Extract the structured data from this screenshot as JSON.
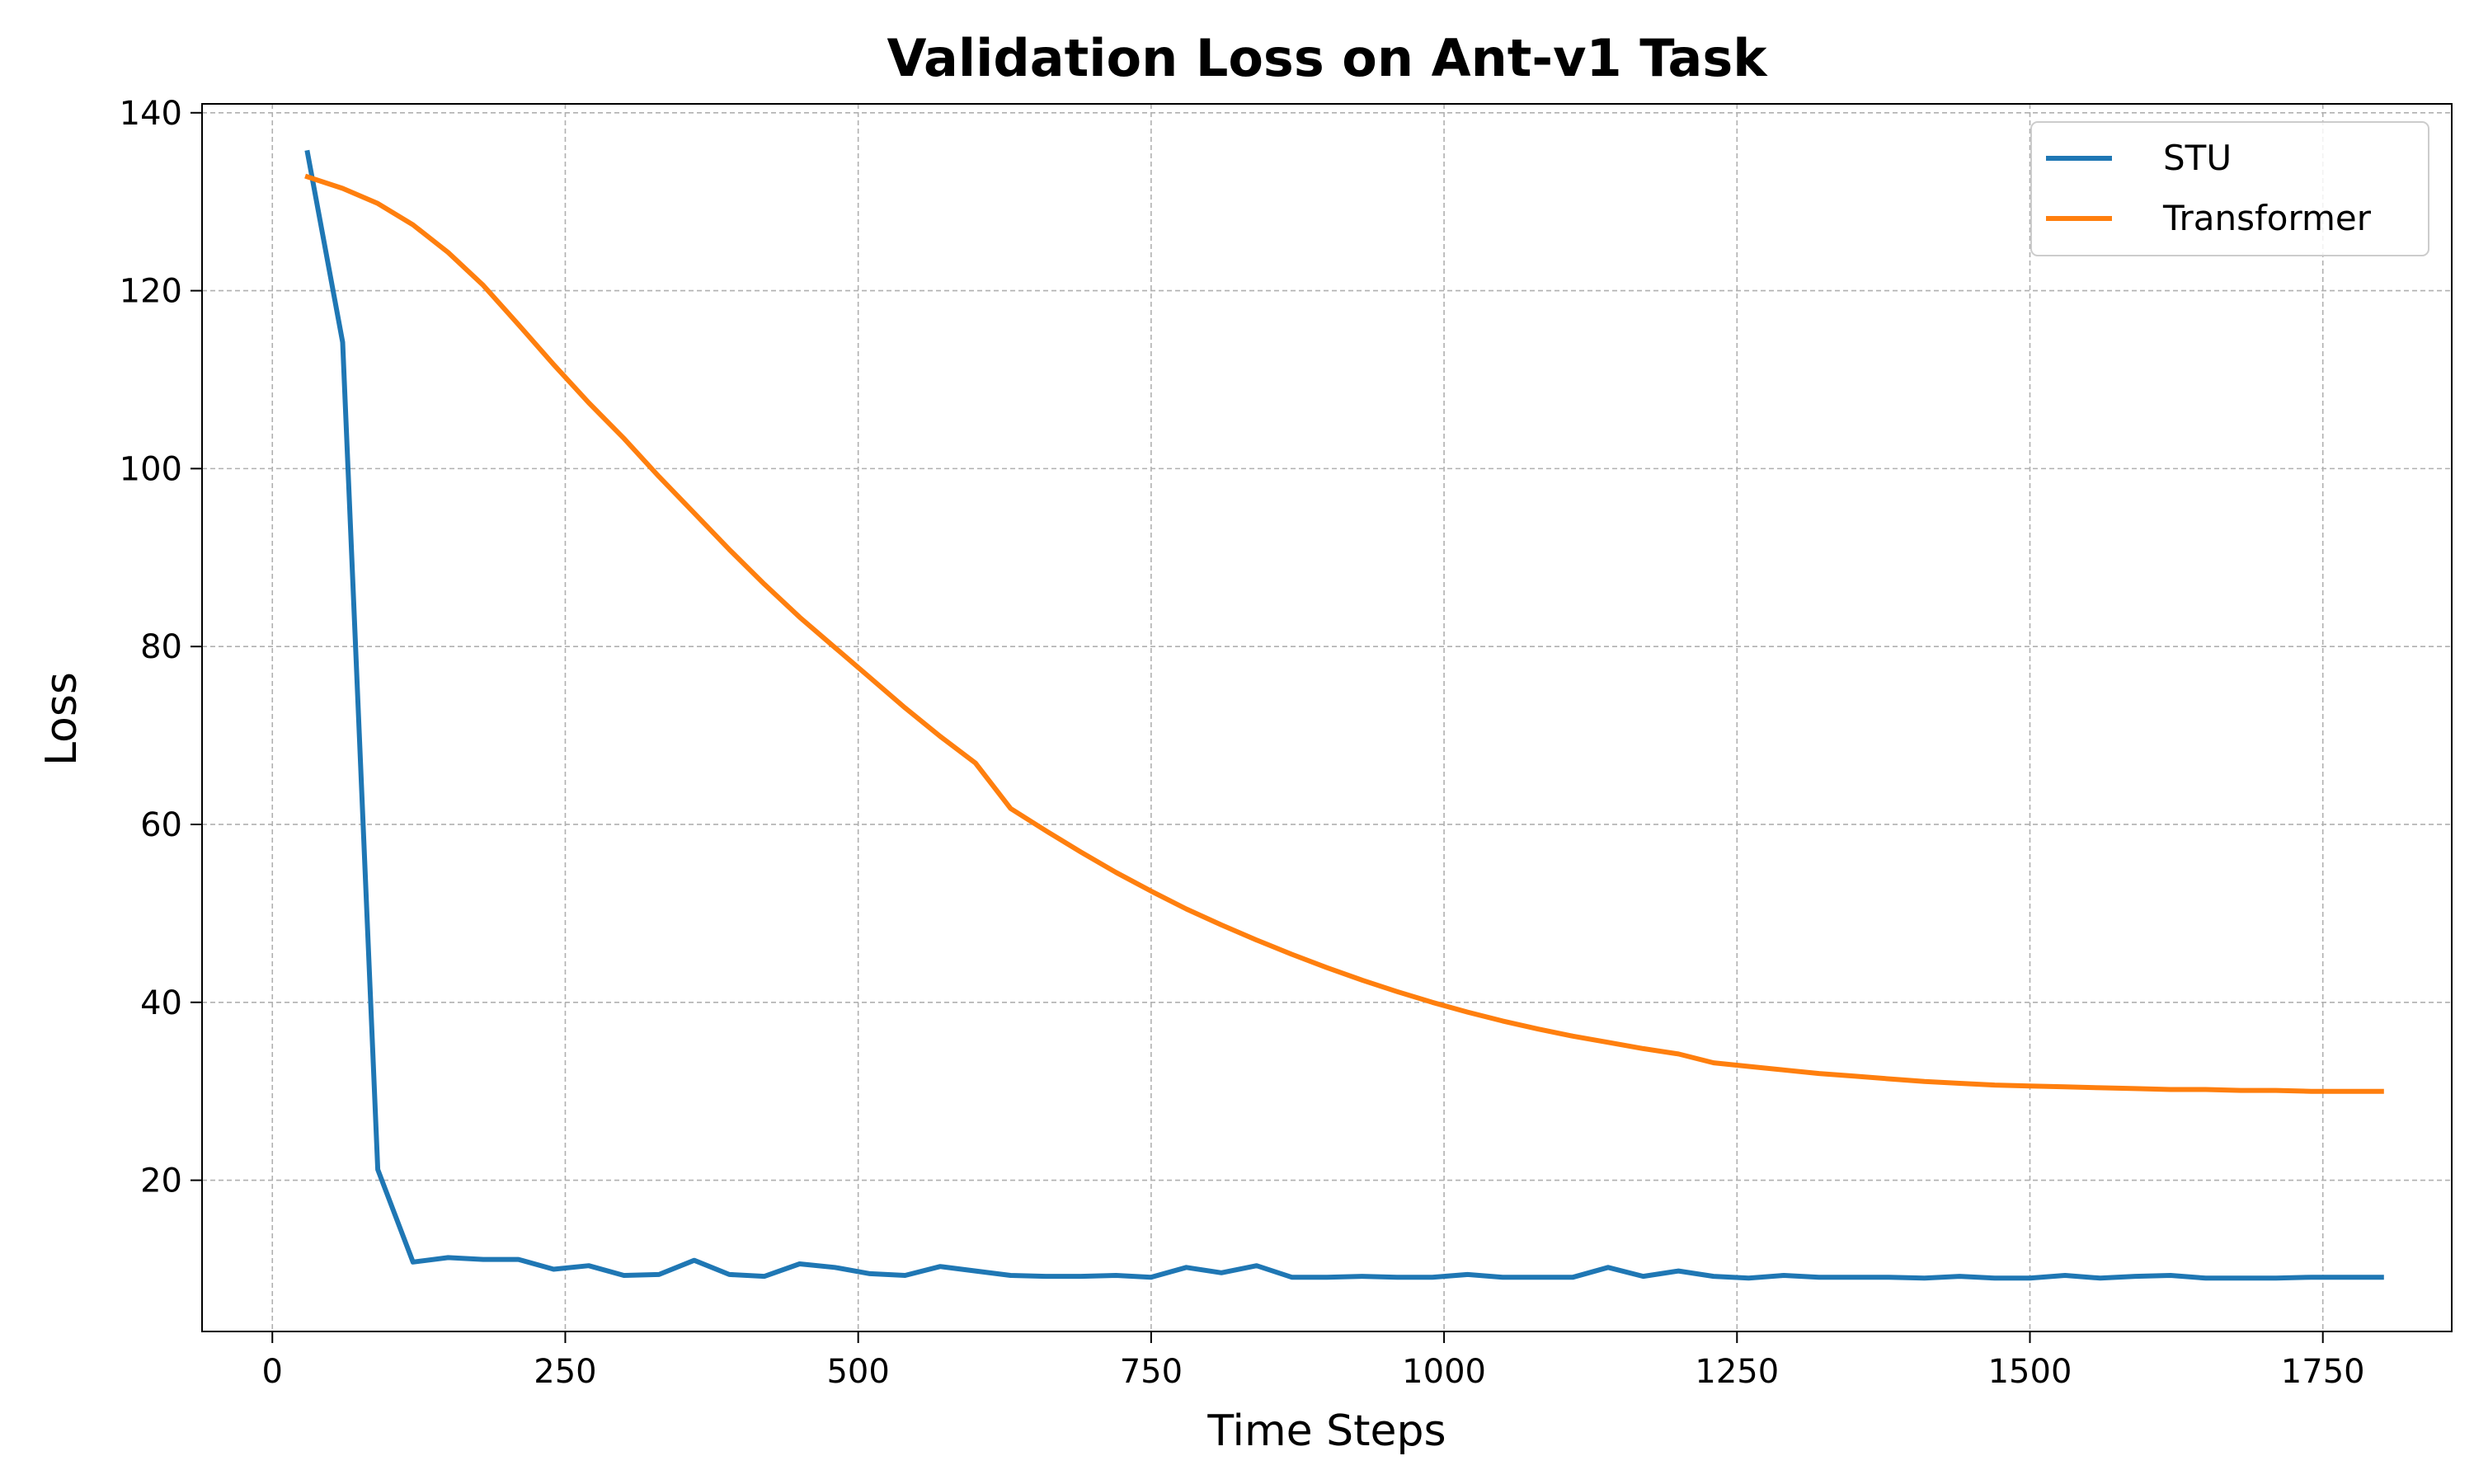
{
  "chart_data": {
    "type": "line",
    "title": "Validation Loss on Ant-v1 Task",
    "xlabel": "Time Steps",
    "ylabel": "Loss",
    "xlim": [
      -60,
      1860
    ],
    "ylim": [
      3,
      141
    ],
    "xticks": [
      0,
      250,
      500,
      750,
      1000,
      1250,
      1500,
      1750
    ],
    "yticks": [
      20,
      40,
      60,
      80,
      100,
      120,
      140
    ],
    "grid": true,
    "legend_position": "top-right",
    "series": [
      {
        "name": "STU",
        "color": "#1f77b4",
        "x": [
          30,
          60,
          90,
          120,
          150,
          180,
          210,
          240,
          270,
          300,
          330,
          360,
          390,
          420,
          450,
          480,
          510,
          540,
          570,
          600,
          630,
          660,
          690,
          720,
          750,
          780,
          810,
          840,
          870,
          900,
          930,
          960,
          990,
          1020,
          1050,
          1080,
          1110,
          1140,
          1170,
          1200,
          1230,
          1260,
          1290,
          1320,
          1350,
          1380,
          1410,
          1440,
          1470,
          1500,
          1530,
          1560,
          1590,
          1620,
          1650,
          1680,
          1710,
          1740,
          1770,
          1800
        ],
        "y": [
          135.5,
          114.2,
          21.2,
          10.8,
          11.3,
          11.1,
          11.1,
          10.0,
          10.4,
          9.3,
          9.4,
          11.0,
          9.4,
          9.2,
          10.6,
          10.2,
          9.5,
          9.3,
          10.3,
          9.8,
          9.3,
          9.2,
          9.2,
          9.3,
          9.1,
          10.2,
          9.6,
          10.4,
          9.1,
          9.1,
          9.2,
          9.1,
          9.1,
          9.4,
          9.1,
          9.1,
          9.1,
          10.2,
          9.2,
          9.8,
          9.2,
          9.0,
          9.3,
          9.1,
          9.1,
          9.1,
          9.0,
          9.2,
          9.0,
          9.0,
          9.3,
          9.0,
          9.2,
          9.3,
          9.0,
          9.0,
          9.0,
          9.1,
          9.1,
          9.1
        ]
      },
      {
        "name": "Transformer",
        "color": "#ff7f0e",
        "x": [
          30,
          60,
          90,
          120,
          150,
          180,
          210,
          240,
          270,
          300,
          330,
          360,
          390,
          420,
          450,
          480,
          510,
          540,
          570,
          600,
          630,
          660,
          690,
          720,
          750,
          780,
          810,
          840,
          870,
          900,
          930,
          960,
          990,
          1020,
          1050,
          1080,
          1110,
          1140,
          1170,
          1200,
          1230,
          1260,
          1290,
          1320,
          1350,
          1380,
          1410,
          1440,
          1470,
          1500,
          1530,
          1560,
          1590,
          1620,
          1650,
          1680,
          1710,
          1740,
          1770,
          1800
        ],
        "y": [
          132.8,
          131.5,
          129.8,
          127.4,
          124.3,
          120.6,
          116.2,
          111.7,
          107.4,
          103.4,
          99.1,
          95.0,
          90.9,
          87.0,
          83.3,
          79.9,
          76.5,
          73.1,
          69.9,
          66.9,
          61.8,
          59.3,
          56.9,
          54.6,
          52.5,
          50.5,
          48.7,
          47.0,
          45.4,
          43.9,
          42.5,
          41.2,
          40.0,
          38.9,
          37.9,
          37.0,
          36.2,
          35.5,
          34.8,
          34.2,
          33.2,
          32.8,
          32.4,
          32.0,
          31.7,
          31.4,
          31.1,
          30.9,
          30.7,
          30.6,
          30.5,
          30.4,
          30.3,
          30.2,
          30.2,
          30.1,
          30.1,
          30.0,
          30.0,
          30.0
        ]
      }
    ]
  }
}
